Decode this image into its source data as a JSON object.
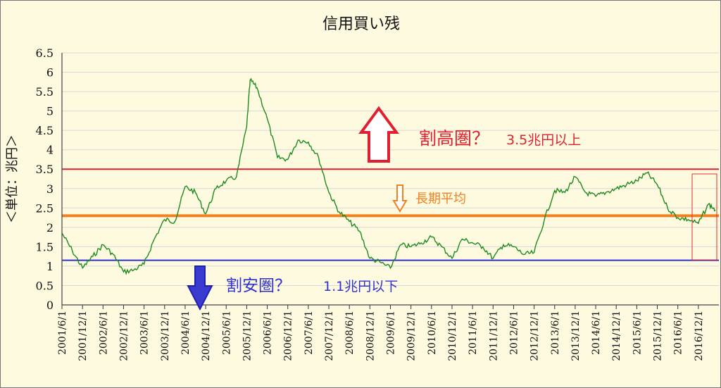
{
  "chart_data": {
    "type": "line",
    "title": "信用買い残",
    "ylabel": "＜単位：兆円＞",
    "xlabel": "",
    "ylim": [
      0,
      6.5
    ],
    "y_ticks": [
      "0",
      "0.5",
      "1",
      "1.5",
      "2",
      "2.5",
      "3",
      "3.5",
      "4",
      "4.5",
      "5",
      "5.5",
      "6",
      "6.5"
    ],
    "x_ticks": [
      "2001/6/1",
      "2001/12/1",
      "2002/6/1",
      "2002/12/1",
      "2003/6/1",
      "2003/12/1",
      "2004/6/1",
      "2004/12/1",
      "2005/6/1",
      "2005/12/1",
      "2006/6/1",
      "2006/12/1",
      "2007/6/1",
      "2007/12/1",
      "2008/6/1",
      "2008/12/1",
      "2009/6/1",
      "2009/12/1",
      "2010/6/1",
      "2010/12/1",
      "2011/6/1",
      "2011/12/1",
      "2012/6/1",
      "2012/12/1",
      "2013/6/1",
      "2013/12/1",
      "2014/6/1",
      "2014/12/1",
      "2015/6/1",
      "2015/12/1",
      "2016/6/1",
      "2016/12/1"
    ],
    "grid": "horizontal",
    "series": [
      {
        "name": "",
        "color": "#1e8a1e",
        "x": [
          "2001/6/1",
          "2001/9/1",
          "2001/12/1",
          "2002/3/1",
          "2002/6/1",
          "2002/9/1",
          "2002/12/1",
          "2003/3/1",
          "2003/6/1",
          "2003/9/1",
          "2003/12/1",
          "2004/3/1",
          "2004/6/1",
          "2004/9/1",
          "2004/12/1",
          "2005/3/1",
          "2005/6/1",
          "2005/9/1",
          "2005/12/1",
          "2006/1/1",
          "2006/3/1",
          "2006/6/1",
          "2006/9/1",
          "2006/12/1",
          "2007/3/1",
          "2007/6/1",
          "2007/9/1",
          "2007/12/1",
          "2008/3/1",
          "2008/6/1",
          "2008/9/1",
          "2008/12/1",
          "2009/3/1",
          "2009/6/1",
          "2009/9/1",
          "2009/12/1",
          "2010/3/1",
          "2010/6/1",
          "2010/9/1",
          "2010/12/1",
          "2011/3/1",
          "2011/6/1",
          "2011/9/1",
          "2011/12/1",
          "2012/3/1",
          "2012/6/1",
          "2012/9/1",
          "2012/12/1",
          "2013/3/1",
          "2013/6/1",
          "2013/9/1",
          "2013/12/1",
          "2014/3/1",
          "2014/6/1",
          "2014/9/1",
          "2014/12/1",
          "2015/3/1",
          "2015/6/1",
          "2015/9/1",
          "2015/12/1",
          "2016/3/1",
          "2016/6/1",
          "2016/9/1",
          "2016/12/1",
          "2017/3/1",
          "2017/5/1"
        ],
        "values": [
          1.85,
          1.4,
          0.95,
          1.25,
          1.55,
          1.3,
          0.85,
          0.9,
          1.05,
          1.7,
          2.2,
          2.15,
          3.05,
          2.9,
          2.35,
          3.0,
          3.2,
          3.3,
          4.6,
          5.8,
          5.6,
          4.8,
          3.8,
          3.75,
          4.25,
          4.2,
          3.8,
          2.9,
          2.4,
          2.15,
          1.9,
          1.2,
          1.1,
          0.95,
          1.55,
          1.5,
          1.6,
          1.75,
          1.5,
          1.2,
          1.7,
          1.6,
          1.5,
          1.2,
          1.55,
          1.5,
          1.3,
          1.35,
          2.2,
          2.95,
          2.9,
          3.3,
          2.9,
          2.8,
          2.9,
          3.0,
          3.1,
          3.2,
          3.4,
          3.1,
          2.5,
          2.25,
          2.2,
          2.1,
          2.6,
          2.45
        ]
      }
    ],
    "reference_lines": [
      {
        "value": 3.5,
        "color": "#e02030"
      },
      {
        "value": 2.3,
        "color": "#f08020"
      },
      {
        "value": 1.15,
        "color": "#3030d0"
      }
    ],
    "annotations": {
      "high_label": "割高圏？",
      "high_value": "3.5兆円以上",
      "avg_label": "長期平均",
      "low_label": "割安圏？",
      "low_value": "1.1兆円以下"
    },
    "colors": {
      "high": "#e02030",
      "avg": "#f08020",
      "low": "#3030d0",
      "line": "#1e8a1e"
    }
  }
}
